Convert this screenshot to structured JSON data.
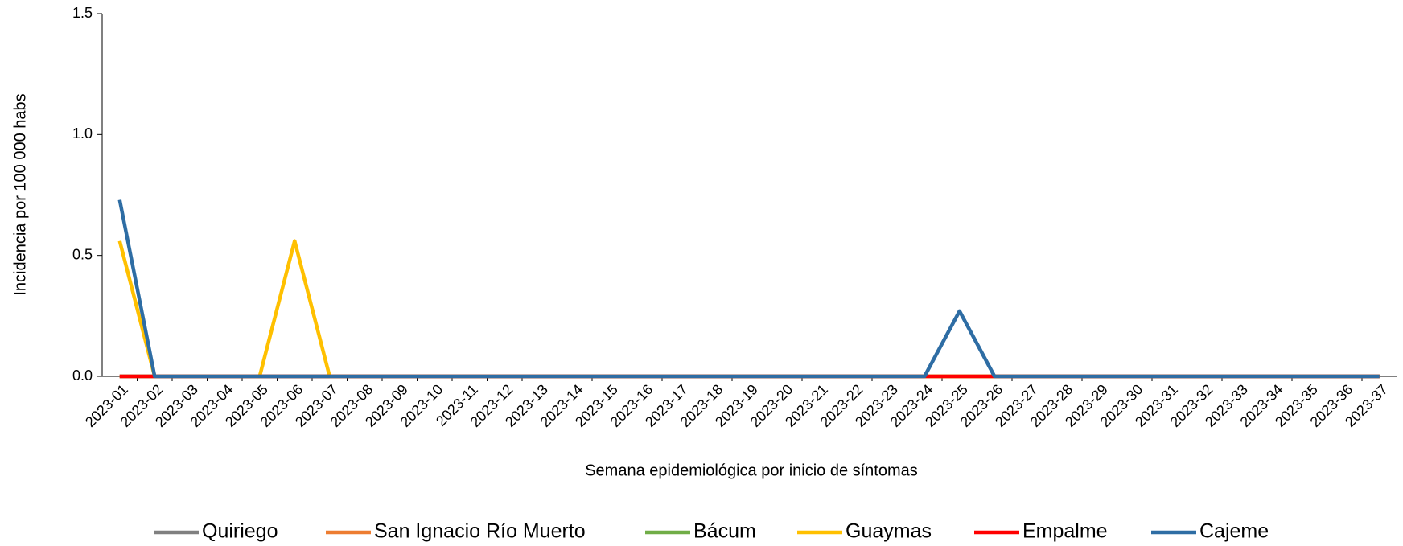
{
  "chart_data": {
    "type": "line",
    "x_label": "Semana epidemiológica por inicio de síntomas",
    "y_label": "Incidencia por 100 000 habs",
    "categories": [
      "2023-01",
      "2023-02",
      "2023-03",
      "2023-04",
      "2023-05",
      "2023-06",
      "2023-07",
      "2023-08",
      "2023-09",
      "2023-10",
      "2023-11",
      "2023-12",
      "2023-13",
      "2023-14",
      "2023-15",
      "2023-16",
      "2023-17",
      "2023-18",
      "2023-19",
      "2023-20",
      "2023-21",
      "2023-22",
      "2023-23",
      "2023-24",
      "2023-25",
      "2023-26",
      "2023-27",
      "2023-28",
      "2023-29",
      "2023-30",
      "2023-31",
      "2023-32",
      "2023-33",
      "2023-34",
      "2023-35",
      "2023-36",
      "2023-37"
    ],
    "series": [
      {
        "name": "Quiriego",
        "color": "#808080",
        "values": [
          0,
          0,
          0,
          0,
          0,
          0,
          0,
          0,
          0,
          0,
          0,
          0,
          0,
          0,
          0,
          0,
          0,
          0,
          0,
          0,
          0,
          0,
          0,
          0,
          0,
          0,
          0,
          0,
          0,
          0,
          0,
          0,
          0,
          0,
          0,
          0,
          0
        ]
      },
      {
        "name": "San Ignacio Río Muerto",
        "color": "#ed7d31",
        "values": [
          0,
          0,
          0,
          0,
          0,
          0,
          0,
          0,
          0,
          0,
          0,
          0,
          0,
          0,
          0,
          0,
          0,
          0,
          0,
          0,
          0,
          0,
          0,
          0,
          0,
          0,
          0,
          0,
          0,
          0,
          0,
          0,
          0,
          0,
          0,
          0,
          0
        ]
      },
      {
        "name": "Bácum",
        "color": "#70ad47",
        "values": [
          0,
          0,
          0,
          0,
          0,
          0,
          0,
          0,
          0,
          0,
          0,
          0,
          0,
          0,
          0,
          0,
          0,
          0,
          0,
          0,
          0,
          0,
          0,
          0,
          0,
          0,
          0,
          0,
          0,
          0,
          0,
          0,
          0,
          0,
          0,
          0,
          0
        ]
      },
      {
        "name": "Guaymas",
        "color": "#ffc000",
        "values": [
          0.56,
          0,
          0,
          0,
          0,
          0.56,
          0,
          0,
          0,
          0,
          0,
          0,
          0,
          0,
          0,
          0,
          0,
          0,
          0,
          0,
          0,
          0,
          0,
          0,
          0,
          0,
          0,
          0,
          0,
          0,
          0,
          0,
          0,
          0,
          0,
          0,
          0
        ]
      },
      {
        "name": "Empalme",
        "color": "#ff0000",
        "values": [
          0,
          0,
          0,
          0,
          0,
          0,
          0,
          0,
          0,
          0,
          0,
          0,
          0,
          0,
          0,
          0,
          0,
          0,
          0,
          0,
          0,
          0,
          0,
          0,
          0,
          0,
          0,
          0,
          0,
          0,
          0,
          0,
          0,
          0,
          0,
          0,
          0
        ]
      },
      {
        "name": "Cajeme",
        "color": "#2e6da4",
        "values": [
          0.73,
          0,
          0,
          0,
          0,
          0,
          0,
          0,
          0,
          0,
          0,
          0,
          0,
          0,
          0,
          0,
          0,
          0,
          0,
          0,
          0,
          0,
          0,
          0,
          0.27,
          0,
          0,
          0,
          0,
          0,
          0,
          0,
          0,
          0,
          0,
          0,
          0
        ]
      }
    ],
    "ylim": [
      0,
      1.5
    ],
    "yticks": [
      {
        "value": 0,
        "label": "0.0"
      },
      {
        "value": 0.5,
        "label": "0.5"
      },
      {
        "value": 1,
        "label": "1.0"
      },
      {
        "value": 1.5,
        "label": "1.5"
      }
    ],
    "legend": "bottom"
  }
}
